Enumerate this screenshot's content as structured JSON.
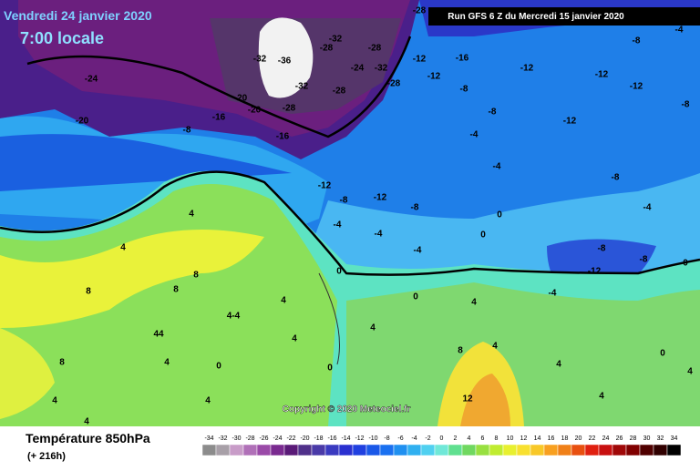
{
  "header": {
    "date": "Vendredi 24 janvier 2020",
    "time": "7:00 locale",
    "run": "Run GFS 6 Z du Mercredi 15 janvier 2020"
  },
  "map": {
    "copyright": "Copyright © 2020 Meteociel.fr",
    "labels": [
      "-24",
      "-20",
      "-32",
      "-36",
      "-32",
      "-28",
      "-28",
      "-32",
      "-28",
      "-24",
      "-20",
      "-20",
      "-28",
      "-32",
      "-28",
      "-28",
      "-12",
      "-16",
      "-12",
      "-12",
      "-16",
      "-16",
      "-12",
      "-12",
      "-8",
      "-8",
      "-8",
      "-12",
      "-12",
      "-8",
      "-12",
      "-8",
      "-4",
      "-4",
      "-4",
      "-8",
      "-8",
      "-4",
      "-4",
      "-4",
      "-8",
      "-4",
      "-8",
      "-12",
      "-8",
      "-4",
      "0",
      "0",
      "0",
      "0",
      "0",
      "4",
      "4",
      "8",
      "8",
      "8",
      "4",
      "4-4",
      "44",
      "8",
      "0",
      "4",
      "4",
      "8",
      "12",
      "4",
      "4",
      "4",
      "4",
      "4",
      "0",
      "4",
      "0",
      "4",
      "4",
      "4"
    ]
  },
  "footer": {
    "title": "Température 850hPa",
    "lead": "(+ 216h)",
    "scale": [
      "-34",
      "-32",
      "-30",
      "-28",
      "-26",
      "-24",
      "-22",
      "-20",
      "-18",
      "-16",
      "-14",
      "-12",
      "-10",
      "-8",
      "-6",
      "-4",
      "-2",
      "0",
      "2",
      "4",
      "6",
      "8",
      "10",
      "12",
      "14",
      "16",
      "18",
      "20",
      "22",
      "24",
      "26",
      "28",
      "30",
      "32",
      "34"
    ]
  }
}
